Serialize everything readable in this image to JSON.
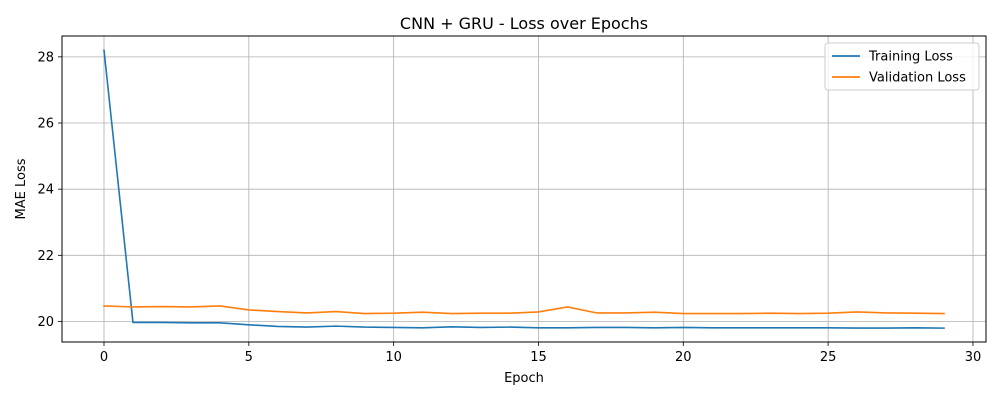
{
  "chart_data": {
    "type": "line",
    "title": "CNN + GRU - Loss over Epochs",
    "xlabel": "Epoch",
    "ylabel": "MAE Loss",
    "xlim": [
      -1.45,
      30.45
    ],
    "ylim": [
      19.38,
      28.63
    ],
    "xticks": [
      0,
      5,
      10,
      15,
      20,
      25,
      30
    ],
    "yticks": [
      20,
      22,
      24,
      26,
      28
    ],
    "grid": true,
    "legend_position": "upper right",
    "x": [
      0,
      1,
      2,
      3,
      4,
      5,
      6,
      7,
      8,
      9,
      10,
      11,
      12,
      13,
      14,
      15,
      16,
      17,
      18,
      19,
      20,
      21,
      22,
      23,
      24,
      25,
      26,
      27,
      28,
      29
    ],
    "series": [
      {
        "name": "Training Loss",
        "color": "#1f77b4",
        "values": [
          28.2,
          19.97,
          19.97,
          19.96,
          19.96,
          19.9,
          19.85,
          19.83,
          19.86,
          19.83,
          19.82,
          19.81,
          19.84,
          19.82,
          19.83,
          19.81,
          19.81,
          19.82,
          19.82,
          19.81,
          19.82,
          19.81,
          19.81,
          19.81,
          19.81,
          19.81,
          19.8,
          19.8,
          19.81,
          19.8
        ]
      },
      {
        "name": "Validation Loss",
        "color": "#ff7f0e",
        "values": [
          20.47,
          20.44,
          20.45,
          20.44,
          20.47,
          20.35,
          20.3,
          20.26,
          20.3,
          20.24,
          20.25,
          20.28,
          20.24,
          20.25,
          20.25,
          20.29,
          20.44,
          20.26,
          20.26,
          20.28,
          20.24,
          20.24,
          20.24,
          20.25,
          20.24,
          20.25,
          20.29,
          20.26,
          20.25,
          20.24
        ]
      }
    ]
  }
}
